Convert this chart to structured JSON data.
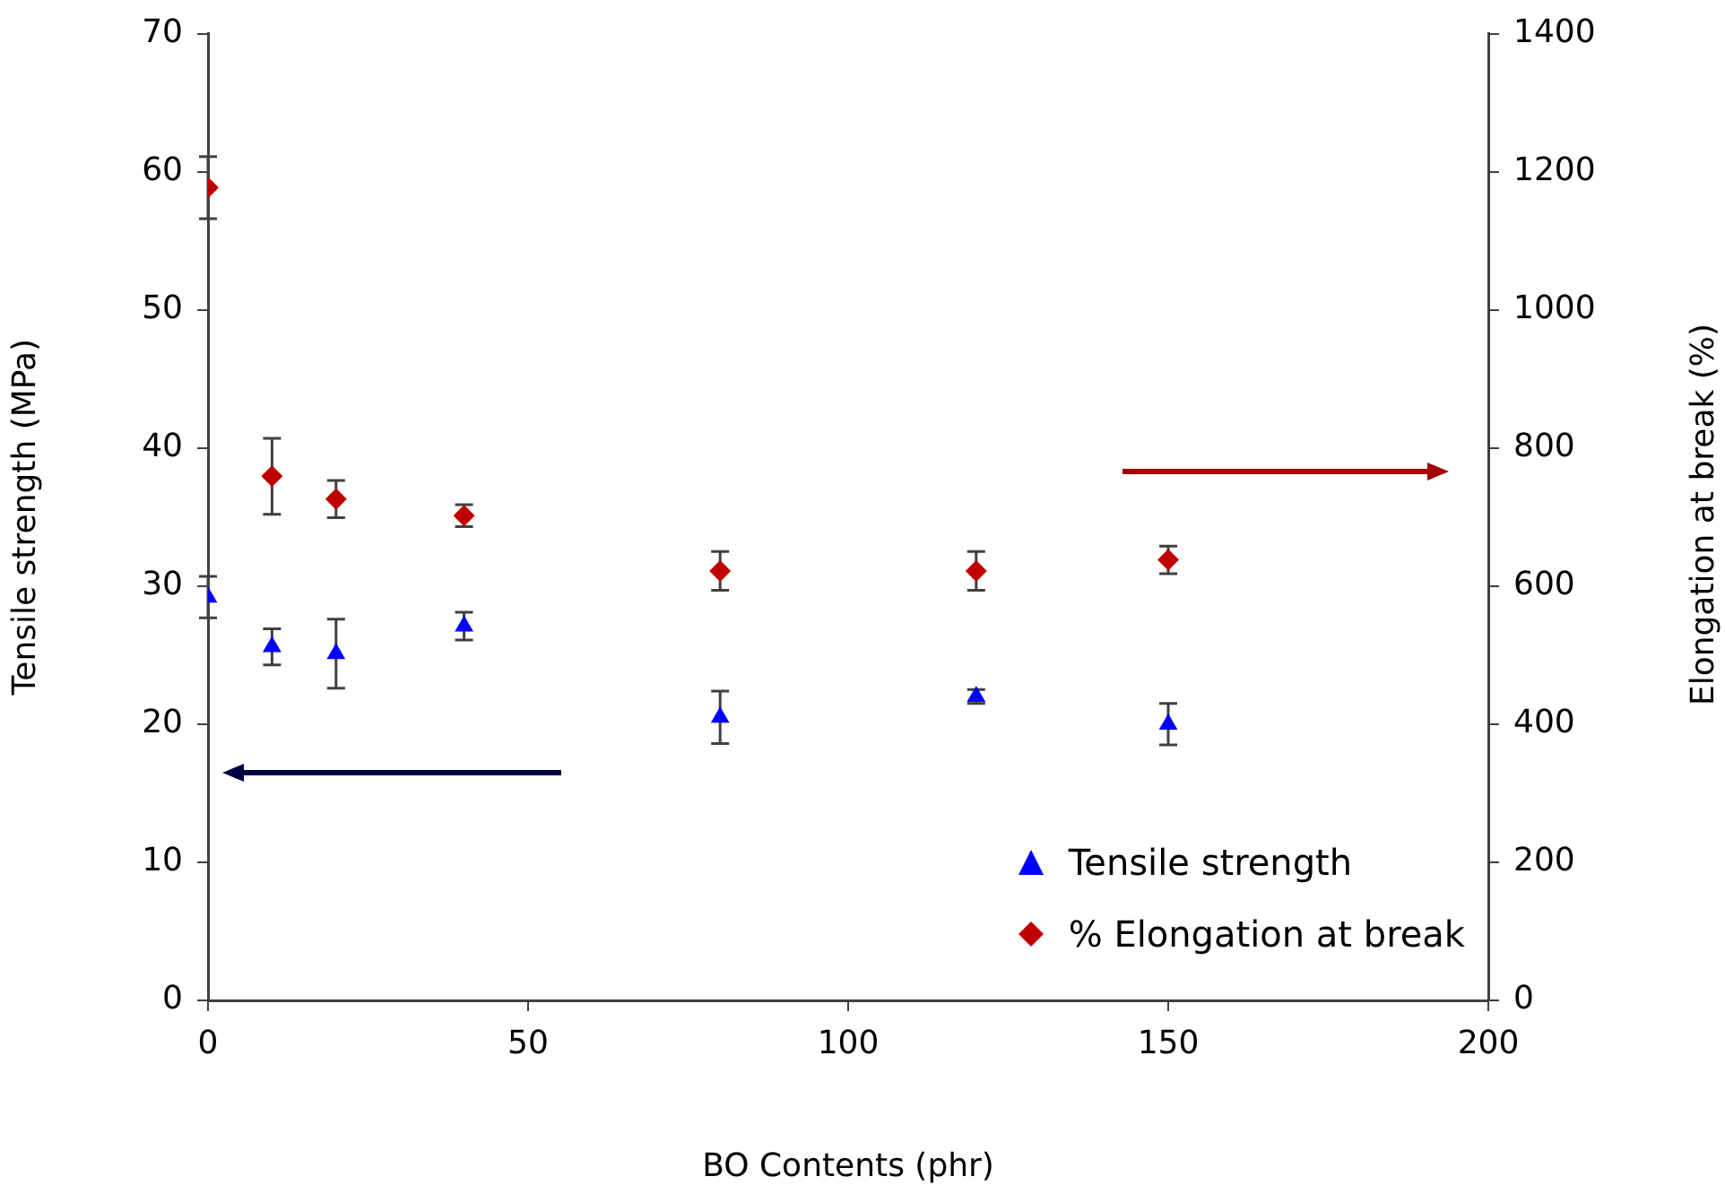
{
  "chart_data": {
    "type": "scatter",
    "xlabel": "BO Contents (phr)",
    "ylabel": "Tensile strength (MPa)",
    "y2label": "Elongation at break (%)",
    "x": [
      0,
      10,
      20,
      40,
      80,
      120,
      150
    ],
    "series": [
      {
        "name": "Tensile strength",
        "color": "#0000ff",
        "marker": "triangle",
        "values": [
          29.2,
          25.6,
          25.1,
          27.1,
          20.5,
          22.0,
          20.0
        ],
        "errors": [
          1.5,
          1.3,
          2.5,
          1.0,
          1.9,
          0.5,
          1.5
        ]
      },
      {
        "name": "% Elongation at break",
        "color": "#c00000",
        "marker": "diamond",
        "axis": "y2",
        "values": [
          1177,
          759,
          726,
          702,
          622,
          622,
          638
        ],
        "errors": [
          45,
          55,
          27,
          16,
          28,
          28,
          20
        ]
      }
    ],
    "xlim": [
      0,
      200
    ],
    "xticks": [
      0,
      50,
      100,
      150,
      200
    ],
    "ylim": [
      0,
      70
    ],
    "yticks": [
      0,
      10,
      20,
      30,
      40,
      50,
      60,
      70
    ],
    "y2lim": [
      0,
      1400
    ],
    "y2ticks": [
      0,
      200,
      400,
      600,
      800,
      1000,
      1200,
      1400
    ],
    "grid": false,
    "legend": "bottom right"
  }
}
